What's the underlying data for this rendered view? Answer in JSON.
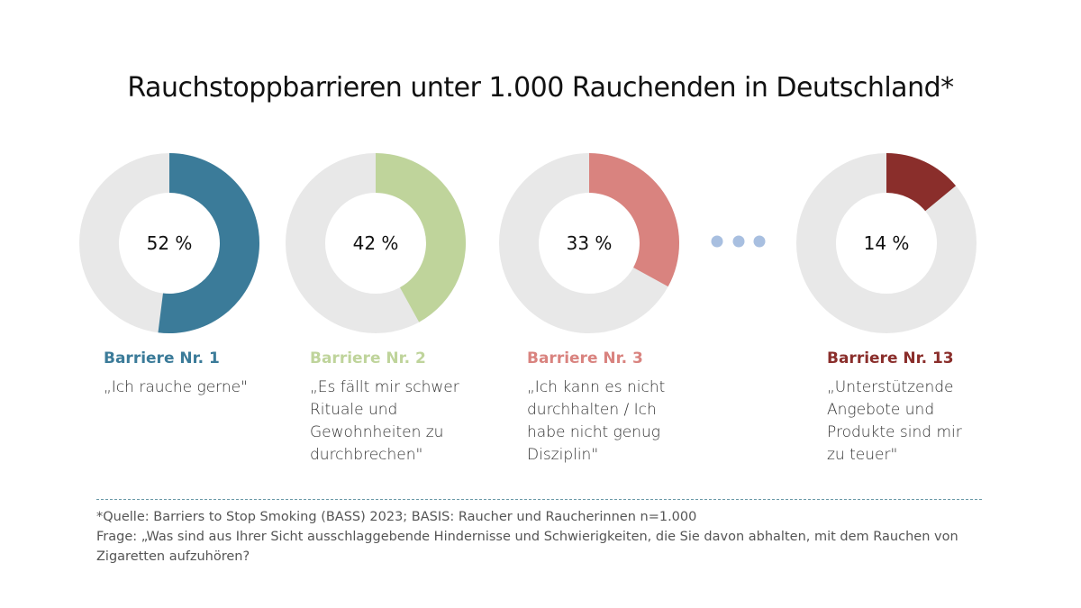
{
  "chart_data": {
    "type": "pie",
    "title": "Rauchstoppbarrieren unter 1.000 Rauchenden in Deutschland*",
    "donuts": [
      {
        "value": 52,
        "label": "52 %",
        "heading": "Barriere Nr. 1",
        "quote": "„Ich rauche gerne\"",
        "color": "#3b7b99"
      },
      {
        "value": 42,
        "label": "42 %",
        "heading": "Barriere Nr. 2",
        "quote": "„Es fällt mir schwer Rituale und Gewohnheiten zu durchbrechen\"",
        "color": "#bfd49b"
      },
      {
        "value": 33,
        "label": "33 %",
        "heading": "Barriere Nr. 3",
        "quote": "„Ich kann es nicht durchhalten / Ich habe nicht genug Disziplin\"",
        "color": "#d9837f"
      },
      {
        "value": 14,
        "label": "14 %",
        "heading": "Barriere Nr. 13",
        "quote": "„Unterstützende Angebote und Produkte sind mir zu teuer\"",
        "color": "#8a2e2b"
      }
    ],
    "remainder_color": "#e8e8e8",
    "ellipsis_color": "#a8bfe0"
  },
  "footnote": {
    "source": "*Quelle: Barriers to Stop Smoking (BASS) 2023; BASIS: Raucher und Raucherinnen n=1.000",
    "question": "Frage: „Was sind aus Ihrer Sicht ausschlaggebende Hindernisse und Schwierigkeiten, die Sie davon abhalten, mit dem Rauchen von Zigaretten aufzuhören?"
  }
}
